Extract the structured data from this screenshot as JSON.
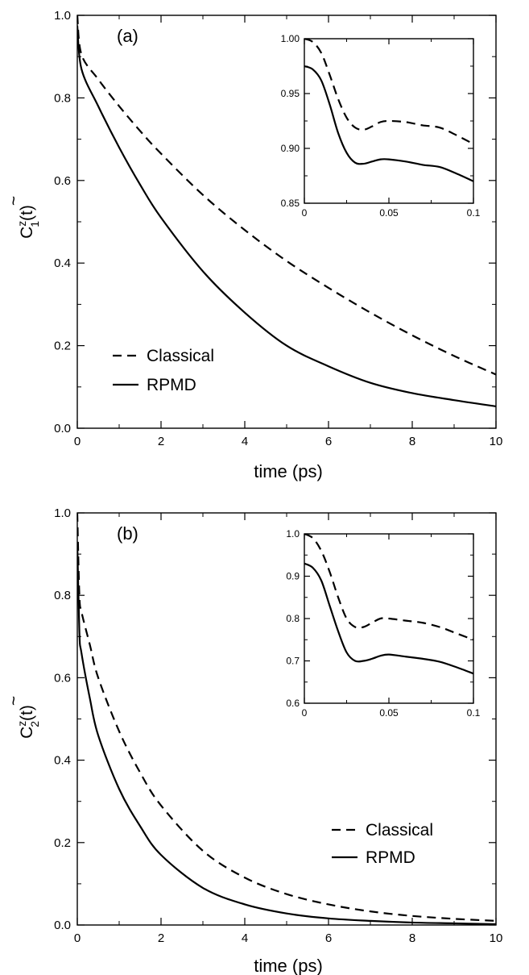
{
  "chart_data": [
    {
      "type": "line",
      "panel_label": "(a)",
      "xlabel": "time (ps)",
      "ylabel_main": "C",
      "ylabel_sup": "z",
      "ylabel_sub": "1",
      "ylabel_tail": "(t)",
      "xlim": [
        0,
        10
      ],
      "ylim": [
        0,
        1
      ],
      "xticks": [
        0,
        2,
        4,
        6,
        8,
        10
      ],
      "xtick_labels": [
        "0",
        "2",
        "4",
        "6",
        "8",
        "10"
      ],
      "yticks": [
        0,
        0.2,
        0.4,
        0.6,
        0.8,
        1.0
      ],
      "ytick_labels": [
        "0.0",
        "0.2",
        "0.4",
        "0.6",
        "0.8",
        "1.0"
      ],
      "legend_position": "bottom-left",
      "series": [
        {
          "name": "Classical",
          "style": "dashed",
          "x": [
            0,
            0.1,
            0.5,
            1,
            1.5,
            2,
            3,
            4,
            5,
            6,
            7,
            8,
            9,
            10
          ],
          "y": [
            1.0,
            0.905,
            0.845,
            0.78,
            0.72,
            0.665,
            0.565,
            0.48,
            0.405,
            0.34,
            0.28,
            0.225,
            0.175,
            0.13
          ]
        },
        {
          "name": "RPMD",
          "style": "solid",
          "x": [
            0,
            0.1,
            0.5,
            1,
            1.5,
            2,
            3,
            4,
            5,
            6,
            7,
            8,
            9,
            10
          ],
          "y": [
            0.975,
            0.87,
            0.78,
            0.68,
            0.59,
            0.51,
            0.38,
            0.28,
            0.2,
            0.15,
            0.11,
            0.085,
            0.068,
            0.053
          ]
        }
      ],
      "inset": {
        "xlim": [
          0,
          0.1
        ],
        "ylim": [
          0.85,
          1.0
        ],
        "xticks": [
          0,
          0.05,
          0.1
        ],
        "xtick_labels": [
          "0",
          "0.05",
          "0.1"
        ],
        "yticks": [
          0.85,
          0.9,
          0.95,
          1.0
        ],
        "ytick_labels": [
          "0.85",
          "0.90",
          "0.95",
          "1.00"
        ],
        "series": [
          {
            "name": "Classical",
            "style": "dashed",
            "x": [
              0,
              0.005,
              0.01,
              0.015,
              0.02,
              0.025,
              0.03,
              0.035,
              0.04,
              0.045,
              0.05,
              0.06,
              0.07,
              0.08,
              0.09,
              0.1
            ],
            "y": [
              1.0,
              0.997,
              0.987,
              0.967,
              0.945,
              0.928,
              0.919,
              0.917,
              0.92,
              0.924,
              0.925,
              0.924,
              0.921,
              0.919,
              0.912,
              0.904
            ]
          },
          {
            "name": "RPMD",
            "style": "solid",
            "x": [
              0,
              0.005,
              0.01,
              0.015,
              0.02,
              0.025,
              0.03,
              0.035,
              0.04,
              0.045,
              0.05,
              0.06,
              0.07,
              0.08,
              0.09,
              0.1
            ],
            "y": [
              0.975,
              0.972,
              0.962,
              0.94,
              0.914,
              0.896,
              0.887,
              0.886,
              0.888,
              0.89,
              0.89,
              0.888,
              0.885,
              0.883,
              0.877,
              0.87
            ]
          }
        ]
      }
    },
    {
      "type": "line",
      "panel_label": "(b)",
      "xlabel": "time (ps)",
      "ylabel_main": "C",
      "ylabel_sup": "z",
      "ylabel_sub": "2",
      "ylabel_tail": "(t)",
      "xlim": [
        0,
        10
      ],
      "ylim": [
        0,
        1
      ],
      "xticks": [
        0,
        2,
        4,
        6,
        8,
        10
      ],
      "xtick_labels": [
        "0",
        "2",
        "4",
        "6",
        "8",
        "10"
      ],
      "yticks": [
        0,
        0.2,
        0.4,
        0.6,
        0.8,
        1.0
      ],
      "ytick_labels": [
        "0.0",
        "0.2",
        "0.4",
        "0.6",
        "0.8",
        "1.0"
      ],
      "legend_position": "bottom-right",
      "series": [
        {
          "name": "Classical",
          "style": "dashed",
          "x": [
            0,
            0.05,
            0.1,
            0.3,
            0.5,
            1,
            1.5,
            2,
            3,
            4,
            5,
            6,
            7,
            8,
            9,
            10
          ],
          "y": [
            1.0,
            0.8,
            0.76,
            0.68,
            0.6,
            0.47,
            0.37,
            0.29,
            0.18,
            0.115,
            0.075,
            0.05,
            0.033,
            0.022,
            0.015,
            0.01
          ]
        },
        {
          "name": "RPMD",
          "style": "solid",
          "x": [
            0,
            0.05,
            0.1,
            0.3,
            0.5,
            1,
            1.5,
            2,
            3,
            4,
            5,
            6,
            7,
            8,
            9,
            10
          ],
          "y": [
            0.93,
            0.71,
            0.66,
            0.55,
            0.46,
            0.33,
            0.24,
            0.17,
            0.09,
            0.05,
            0.028,
            0.016,
            0.01,
            0.006,
            0.004,
            0.002
          ]
        }
      ],
      "inset": {
        "xlim": [
          0,
          0.1
        ],
        "ylim": [
          0.6,
          1.0
        ],
        "xticks": [
          0,
          0.05,
          0.1
        ],
        "xtick_labels": [
          "0",
          "0.05",
          "0.1"
        ],
        "yticks": [
          0.6,
          0.7,
          0.8,
          0.9,
          1.0
        ],
        "ytick_labels": [
          "0.6",
          "0.7",
          "0.8",
          "0.9",
          "1.0"
        ],
        "series": [
          {
            "name": "Classical",
            "style": "dashed",
            "x": [
              0,
              0.005,
              0.01,
              0.015,
              0.02,
              0.025,
              0.03,
              0.035,
              0.04,
              0.045,
              0.05,
              0.06,
              0.07,
              0.08,
              0.09,
              0.1
            ],
            "y": [
              1.0,
              0.99,
              0.96,
              0.91,
              0.85,
              0.8,
              0.78,
              0.78,
              0.79,
              0.8,
              0.8,
              0.795,
              0.79,
              0.78,
              0.765,
              0.75
            ]
          },
          {
            "name": "RPMD",
            "style": "solid",
            "x": [
              0,
              0.005,
              0.01,
              0.015,
              0.02,
              0.025,
              0.03,
              0.035,
              0.04,
              0.045,
              0.05,
              0.06,
              0.07,
              0.08,
              0.09,
              0.1
            ],
            "y": [
              0.93,
              0.92,
              0.89,
              0.83,
              0.77,
              0.72,
              0.7,
              0.7,
              0.705,
              0.712,
              0.715,
              0.71,
              0.705,
              0.698,
              0.685,
              0.67
            ]
          }
        ]
      }
    }
  ]
}
